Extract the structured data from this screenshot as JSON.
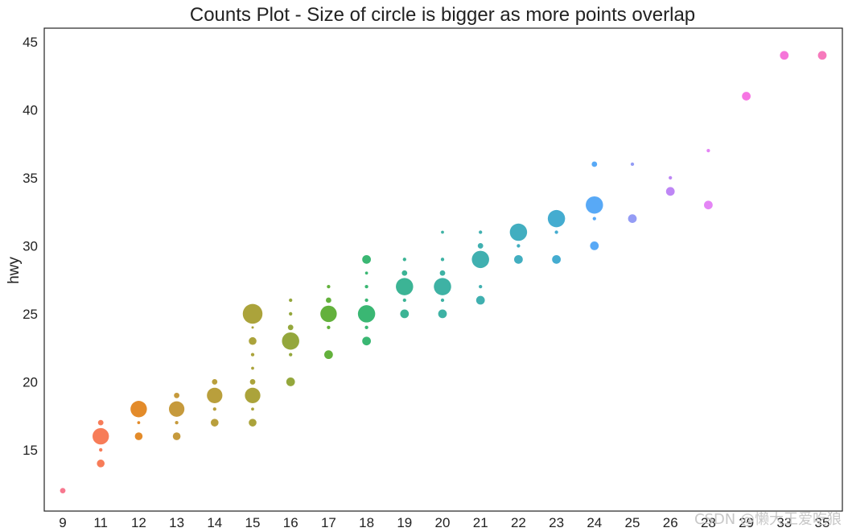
{
  "chart_data": {
    "type": "scatter",
    "title": "Counts Plot - Size of circle is bigger as more points overlap",
    "xlabel": "",
    "ylabel": "hwy",
    "x_categories": [
      "9",
      "11",
      "12",
      "13",
      "14",
      "15",
      "16",
      "17",
      "18",
      "19",
      "20",
      "21",
      "22",
      "23",
      "24",
      "25",
      "26",
      "28",
      "29",
      "33",
      "35"
    ],
    "ylim": [
      10.5,
      46
    ],
    "yticks": [
      15,
      20,
      25,
      30,
      35,
      40,
      45
    ],
    "grid": false,
    "legend": "none",
    "colors": [
      "#f77189",
      "#f7754f",
      "#e1851f",
      "#c39532",
      "#b59a32",
      "#a79e30",
      "#8ea231",
      "#5bad32",
      "#2fb36b",
      "#32b08f",
      "#34ae9f",
      "#36acac",
      "#38aabd",
      "#3aa8cd",
      "#4fa4f5",
      "#8e97f4",
      "#ba7ff4",
      "#e37ef4",
      "#f56ee1",
      "#f46ed7",
      "#f572b8"
    ],
    "points": [
      {
        "x": "9",
        "y": 12,
        "n": 1
      },
      {
        "x": "11",
        "y": 14,
        "n": 2
      },
      {
        "x": "11",
        "y": 15,
        "n": 0.4
      },
      {
        "x": "11",
        "y": 16,
        "n": 9
      },
      {
        "x": "11",
        "y": 17,
        "n": 1
      },
      {
        "x": "12",
        "y": 16,
        "n": 2
      },
      {
        "x": "12",
        "y": 17,
        "n": 0.3
      },
      {
        "x": "12",
        "y": 18,
        "n": 9
      },
      {
        "x": "13",
        "y": 16,
        "n": 2
      },
      {
        "x": "13",
        "y": 17,
        "n": 0.4
      },
      {
        "x": "13",
        "y": 18,
        "n": 8
      },
      {
        "x": "13",
        "y": 19,
        "n": 1
      },
      {
        "x": "14",
        "y": 17,
        "n": 2
      },
      {
        "x": "14",
        "y": 18,
        "n": 0.4
      },
      {
        "x": "14",
        "y": 19,
        "n": 8
      },
      {
        "x": "14",
        "y": 20,
        "n": 1
      },
      {
        "x": "15",
        "y": 17,
        "n": 2
      },
      {
        "x": "15",
        "y": 18,
        "n": 0.3
      },
      {
        "x": "15",
        "y": 19,
        "n": 8
      },
      {
        "x": "15",
        "y": 20,
        "n": 1
      },
      {
        "x": "15",
        "y": 21,
        "n": 0.3
      },
      {
        "x": "15",
        "y": 22,
        "n": 0.4
      },
      {
        "x": "15",
        "y": 23,
        "n": 2
      },
      {
        "x": "15",
        "y": 24,
        "n": 0.1
      },
      {
        "x": "15",
        "y": 25,
        "n": 13
      },
      {
        "x": "16",
        "y": 20,
        "n": 2.5
      },
      {
        "x": "16",
        "y": 22,
        "n": 0.4
      },
      {
        "x": "16",
        "y": 23,
        "n": 10
      },
      {
        "x": "16",
        "y": 24,
        "n": 1
      },
      {
        "x": "16",
        "y": 25,
        "n": 0.4
      },
      {
        "x": "16",
        "y": 26,
        "n": 0.4
      },
      {
        "x": "17",
        "y": 22,
        "n": 2.5
      },
      {
        "x": "17",
        "y": 24,
        "n": 0.4
      },
      {
        "x": "17",
        "y": 25,
        "n": 9
      },
      {
        "x": "17",
        "y": 26,
        "n": 1
      },
      {
        "x": "17",
        "y": 27,
        "n": 0.4
      },
      {
        "x": "18",
        "y": 23,
        "n": 2.5
      },
      {
        "x": "18",
        "y": 24,
        "n": 0.4
      },
      {
        "x": "18",
        "y": 25,
        "n": 10
      },
      {
        "x": "18",
        "y": 26,
        "n": 0.4
      },
      {
        "x": "18",
        "y": 27,
        "n": 0.4
      },
      {
        "x": "18",
        "y": 28,
        "n": 0.3
      },
      {
        "x": "18",
        "y": 29,
        "n": 2.5
      },
      {
        "x": "19",
        "y": 25,
        "n": 2.5
      },
      {
        "x": "19",
        "y": 26,
        "n": 0.4
      },
      {
        "x": "19",
        "y": 27,
        "n": 10
      },
      {
        "x": "19",
        "y": 28,
        "n": 1
      },
      {
        "x": "19",
        "y": 29,
        "n": 0.4
      },
      {
        "x": "20",
        "y": 25,
        "n": 2.5
      },
      {
        "x": "20",
        "y": 26,
        "n": 0.4
      },
      {
        "x": "20",
        "y": 27,
        "n": 10
      },
      {
        "x": "20",
        "y": 28,
        "n": 1
      },
      {
        "x": "20",
        "y": 29,
        "n": 0.4
      },
      {
        "x": "20",
        "y": 31,
        "n": 0.3
      },
      {
        "x": "21",
        "y": 26,
        "n": 2.5
      },
      {
        "x": "21",
        "y": 27,
        "n": 0.4
      },
      {
        "x": "21",
        "y": 29,
        "n": 10
      },
      {
        "x": "21",
        "y": 30,
        "n": 1
      },
      {
        "x": "21",
        "y": 31,
        "n": 0.4
      },
      {
        "x": "22",
        "y": 29,
        "n": 2.5
      },
      {
        "x": "22",
        "y": 30,
        "n": 0.4
      },
      {
        "x": "22",
        "y": 31,
        "n": 10
      },
      {
        "x": "23",
        "y": 29,
        "n": 2.5
      },
      {
        "x": "23",
        "y": 31,
        "n": 0.4
      },
      {
        "x": "23",
        "y": 32,
        "n": 10
      },
      {
        "x": "24",
        "y": 30,
        "n": 2.5
      },
      {
        "x": "24",
        "y": 32,
        "n": 0.4
      },
      {
        "x": "24",
        "y": 33,
        "n": 10
      },
      {
        "x": "24",
        "y": 36,
        "n": 1
      },
      {
        "x": "25",
        "y": 32,
        "n": 2.5
      },
      {
        "x": "25",
        "y": 36,
        "n": 0.4
      },
      {
        "x": "26",
        "y": 34,
        "n": 2.5
      },
      {
        "x": "26",
        "y": 35,
        "n": 0.4
      },
      {
        "x": "28",
        "y": 33,
        "n": 2.5
      },
      {
        "x": "28",
        "y": 37,
        "n": 0.4
      },
      {
        "x": "29",
        "y": 41,
        "n": 2.5
      },
      {
        "x": "33",
        "y": 44,
        "n": 2.5
      },
      {
        "x": "35",
        "y": 44,
        "n": 2.5
      }
    ]
  },
  "watermark": "CSDN @懒大王爱吃狼"
}
